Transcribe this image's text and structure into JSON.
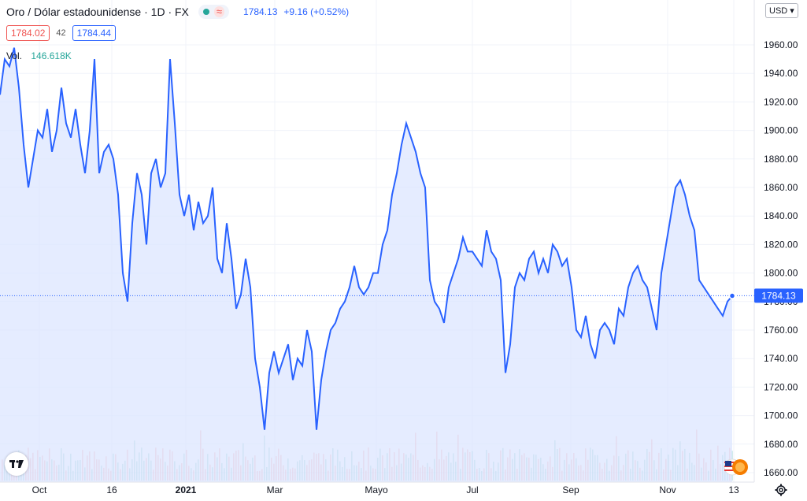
{
  "header": {
    "title": "Oro / Dólar estadounidense · 1D · FX",
    "last": "1784.13",
    "change": "+9.16 (+0.52%)"
  },
  "quote": {
    "bid": "1784.02",
    "spread": "42",
    "ask": "1784.44"
  },
  "volume": {
    "label": "Vol.",
    "value": "146.618K"
  },
  "currency_button": "USD",
  "colors": {
    "line": "#2962ff",
    "fill": "#dce6ff",
    "vol_up": "#26a69a",
    "vol_down": "#ef5350",
    "grid": "#f0f3fa"
  },
  "chart_data": {
    "type": "area",
    "title": "Oro / Dólar estadounidense",
    "currency": "USD",
    "ylim": [
      1650,
      1975
    ],
    "yticks": [
      "1960.00",
      "1940.00",
      "1920.00",
      "1900.00",
      "1880.00",
      "1860.00",
      "1840.00",
      "1820.00",
      "1800.00",
      "1780.00",
      "1760.00",
      "1740.00",
      "1720.00",
      "1700.00",
      "1680.00",
      "1660.00"
    ],
    "xticks": [
      "Oct",
      "16",
      "2021",
      "Mar",
      "Mayo",
      "Jul",
      "Sep",
      "Nov",
      "13"
    ],
    "last_price_label": "1784.13",
    "series": [
      {
        "name": "Oro / Dólar estadounidense",
        "values": [
          1925,
          1950,
          1945,
          1958,
          1930,
          1890,
          1860,
          1880,
          1900,
          1895,
          1915,
          1885,
          1900,
          1930,
          1905,
          1895,
          1915,
          1890,
          1870,
          1900,
          1950,
          1870,
          1885,
          1890,
          1880,
          1855,
          1800,
          1780,
          1835,
          1870,
          1855,
          1820,
          1870,
          1880,
          1860,
          1870,
          1950,
          1905,
          1855,
          1840,
          1855,
          1830,
          1850,
          1835,
          1840,
          1860,
          1810,
          1800,
          1835,
          1810,
          1775,
          1785,
          1810,
          1790,
          1740,
          1720,
          1690,
          1730,
          1745,
          1730,
          1740,
          1750,
          1725,
          1740,
          1735,
          1760,
          1745,
          1690,
          1725,
          1745,
          1760,
          1765,
          1775,
          1780,
          1790,
          1805,
          1790,
          1785,
          1790,
          1800,
          1800,
          1820,
          1830,
          1855,
          1870,
          1890,
          1905,
          1895,
          1885,
          1870,
          1860,
          1795,
          1780,
          1775,
          1765,
          1790,
          1800,
          1810,
          1825,
          1815,
          1815,
          1810,
          1805,
          1830,
          1815,
          1810,
          1795,
          1730,
          1750,
          1790,
          1800,
          1795,
          1810,
          1815,
          1800,
          1810,
          1800,
          1820,
          1815,
          1805,
          1810,
          1790,
          1760,
          1755,
          1770,
          1750,
          1740,
          1760,
          1765,
          1760,
          1750,
          1775,
          1770,
          1790,
          1800,
          1805,
          1795,
          1790,
          1775,
          1760,
          1800,
          1820,
          1840,
          1860,
          1865,
          1855,
          1840,
          1830,
          1795,
          1790,
          1785,
          1780,
          1775,
          1770,
          1780,
          1784
        ]
      }
    ]
  }
}
